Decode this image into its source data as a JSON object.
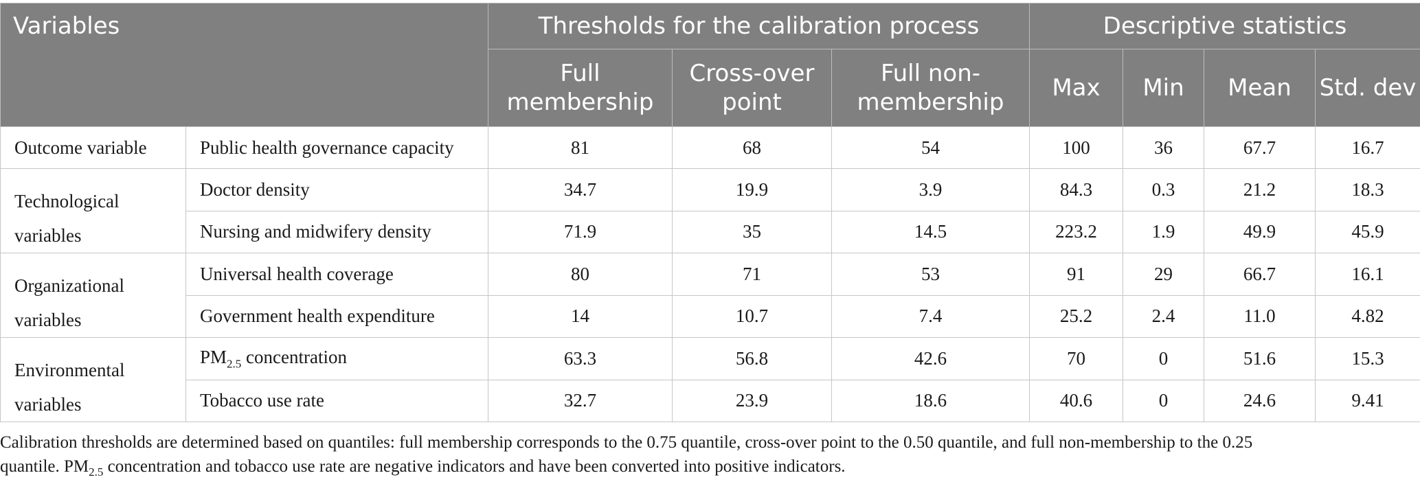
{
  "header": {
    "variables": "Variables",
    "thresholds_group": "Thresholds for the calibration process",
    "stats_group": "Descriptive statistics",
    "columns": [
      "Full membership",
      "Cross-over point",
      "Full non-membership",
      "Max",
      "Min",
      "Mean",
      "Std. dev"
    ]
  },
  "groups": [
    {
      "label": "Outcome variable",
      "rows": [
        {
          "name": "Public health governance capacity",
          "values": [
            "81",
            "68",
            "54",
            "100",
            "36",
            "67.7",
            "16.7"
          ]
        }
      ]
    },
    {
      "label": "Technological variables",
      "rows": [
        {
          "name": "Doctor density",
          "values": [
            "34.7",
            "19.9",
            "3.9",
            "84.3",
            "0.3",
            "21.2",
            "18.3"
          ]
        },
        {
          "name": "Nursing and midwifery density",
          "values": [
            "71.9",
            "35",
            "14.5",
            "223.2",
            "1.9",
            "49.9",
            "45.9"
          ]
        }
      ]
    },
    {
      "label": "Organizational variables",
      "rows": [
        {
          "name": "Universal health coverage",
          "values": [
            "80",
            "71",
            "53",
            "91",
            "29",
            "66.7",
            "16.1"
          ]
        },
        {
          "name": "Government health expenditure",
          "values": [
            "14",
            "10.7",
            "7.4",
            "25.2",
            "2.4",
            "11.0",
            "4.82"
          ]
        }
      ]
    },
    {
      "label": "Environmental variables",
      "rows": [
        {
          "name_prefix": "PM",
          "name_sub": "2.5",
          "name_suffix": " concentration",
          "values": [
            "63.3",
            "56.8",
            "42.6",
            "70",
            "0",
            "51.6",
            "15.3"
          ]
        },
        {
          "name": "Tobacco use rate",
          "values": [
            "32.7",
            "23.9",
            "18.6",
            "40.6",
            "0",
            "24.6",
            "9.41"
          ]
        }
      ]
    }
  ],
  "note": {
    "line1": "Calibration thresholds are determined based on quantiles: full membership corresponds to the 0.75 quantile, cross-over point to the 0.50 quantile, and full non-membership to the 0.25",
    "line2_start": "quantile. PM",
    "line2_sub": "2.5",
    "line2_end": " concentration and tobacco use rate are negative indicators and have been converted into positive indicators."
  }
}
